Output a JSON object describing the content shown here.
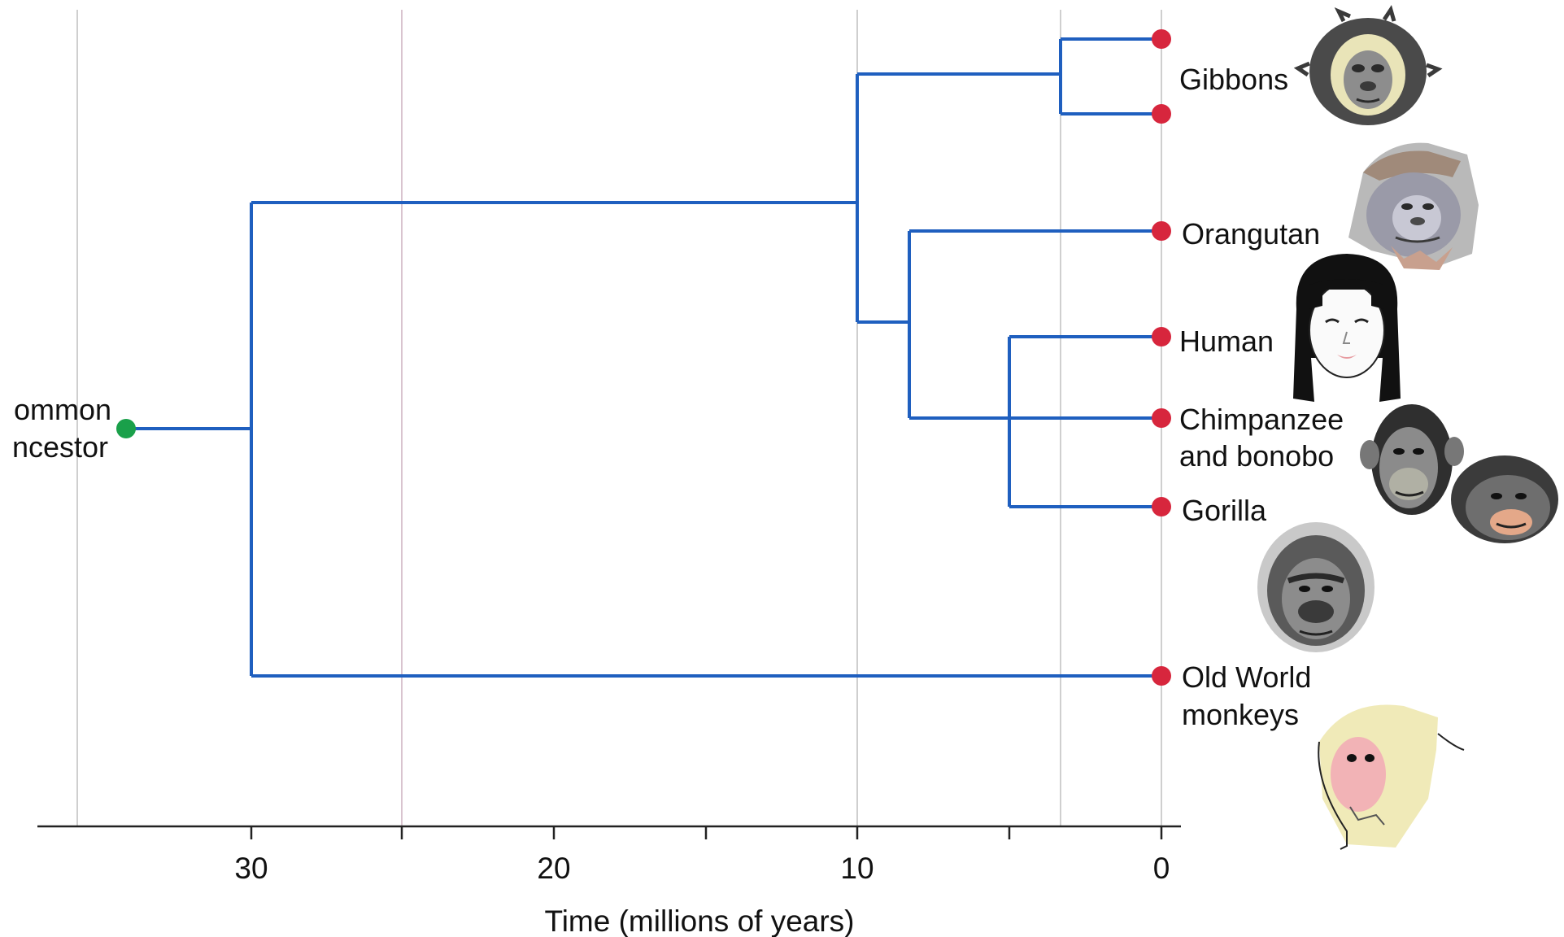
{
  "colors": {
    "branch": "#1f5fbf",
    "tip_dot": "#d7263d",
    "root_dot": "#1aa04a",
    "grid": "#cfcfcf",
    "grid_accent": "#d9c4cf",
    "axis": "#222222"
  },
  "root": {
    "label_lines": [
      "ommon",
      "ncestor"
    ]
  },
  "axis": {
    "title": "Time (millions of years)",
    "ticks": [
      {
        "value": 30,
        "label": "30"
      },
      {
        "value": 20,
        "label": "20"
      },
      {
        "value": 10,
        "label": "10"
      },
      {
        "value": 0,
        "label": "0"
      }
    ],
    "minor_ticks": [
      25,
      15,
      5
    ]
  },
  "taxa": [
    {
      "id": "gibbon-1",
      "label_lines": []
    },
    {
      "id": "gibbon-2",
      "label_lines": []
    },
    {
      "id": "orangutan",
      "label_lines": [
        "Orangutan"
      ]
    },
    {
      "id": "human",
      "label_lines": [
        "Human"
      ]
    },
    {
      "id": "chimpanzee",
      "label_lines": [
        "Chimpanzee",
        "and bonobo"
      ]
    },
    {
      "id": "gorilla",
      "label_lines": [
        "Gorilla"
      ]
    },
    {
      "id": "old-world-monkeys",
      "label_lines": [
        "Old World",
        "monkeys"
      ]
    }
  ],
  "group_labels": {
    "gibbons": "Gibbons"
  },
  "portraits": [
    "gibbon-icon",
    "orangutan-icon",
    "human-icon",
    "chimpanzee-icon",
    "bonobo-icon",
    "gorilla-icon",
    "macaque-icon"
  ],
  "divergences_mya": {
    "root": 34.5,
    "catarrhines": 30,
    "apes": 10,
    "gibbon_split": 3.3,
    "great_apes": 8.3,
    "african_apes": 5
  }
}
